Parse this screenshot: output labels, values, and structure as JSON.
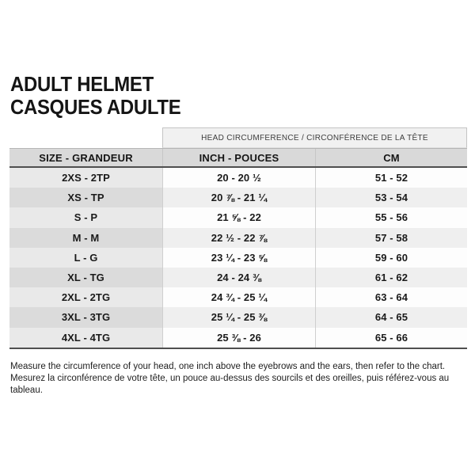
{
  "title": {
    "line1": "ADULT HELMET",
    "line2": "CASQUES ADULTE"
  },
  "table": {
    "banner": "HEAD CIRCUMFERENCE / CIRCONFÉRENCE DE LA TÊTE",
    "columns": [
      "SIZE - GRANDEUR",
      "INCH - POUCES",
      "CM"
    ],
    "rows": [
      {
        "size": "2XS - 2TP",
        "inch": "20 - 20 ½",
        "cm": "51 - 52"
      },
      {
        "size": "XS - TP",
        "inch": "20 ⅞ - 21 ¼",
        "cm": "53 - 54"
      },
      {
        "size": "S - P",
        "inch": "21 ⅝ - 22",
        "cm": "55 - 56"
      },
      {
        "size": "M - M",
        "inch": "22 ½ - 22 ⅞",
        "cm": "57 - 58"
      },
      {
        "size": "L - G",
        "inch": "23 ¼ - 23 ⅝",
        "cm": "59 - 60"
      },
      {
        "size": "XL - TG",
        "inch": "24 - 24 ⅜",
        "cm": "61 - 62"
      },
      {
        "size": "2XL - 2TG",
        "inch": "24 ¾ - 25 ¼",
        "cm": "63 - 64"
      },
      {
        "size": "3XL - 3TG",
        "inch": "25 ¼ - 25 ⅜",
        "cm": "64 - 65"
      },
      {
        "size": "4XL - 4TG",
        "inch": "25 ⅜ - 26",
        "cm": "65 - 66"
      }
    ]
  },
  "footer": {
    "line1": "Measure the circumference of your head, one inch above the eyebrows and the ears, then refer to the chart.",
    "line2": "Mesurez la circonférence de votre tête, un pouce au-dessus des sourcils et des oreilles, puis référez-vous au tableau."
  }
}
